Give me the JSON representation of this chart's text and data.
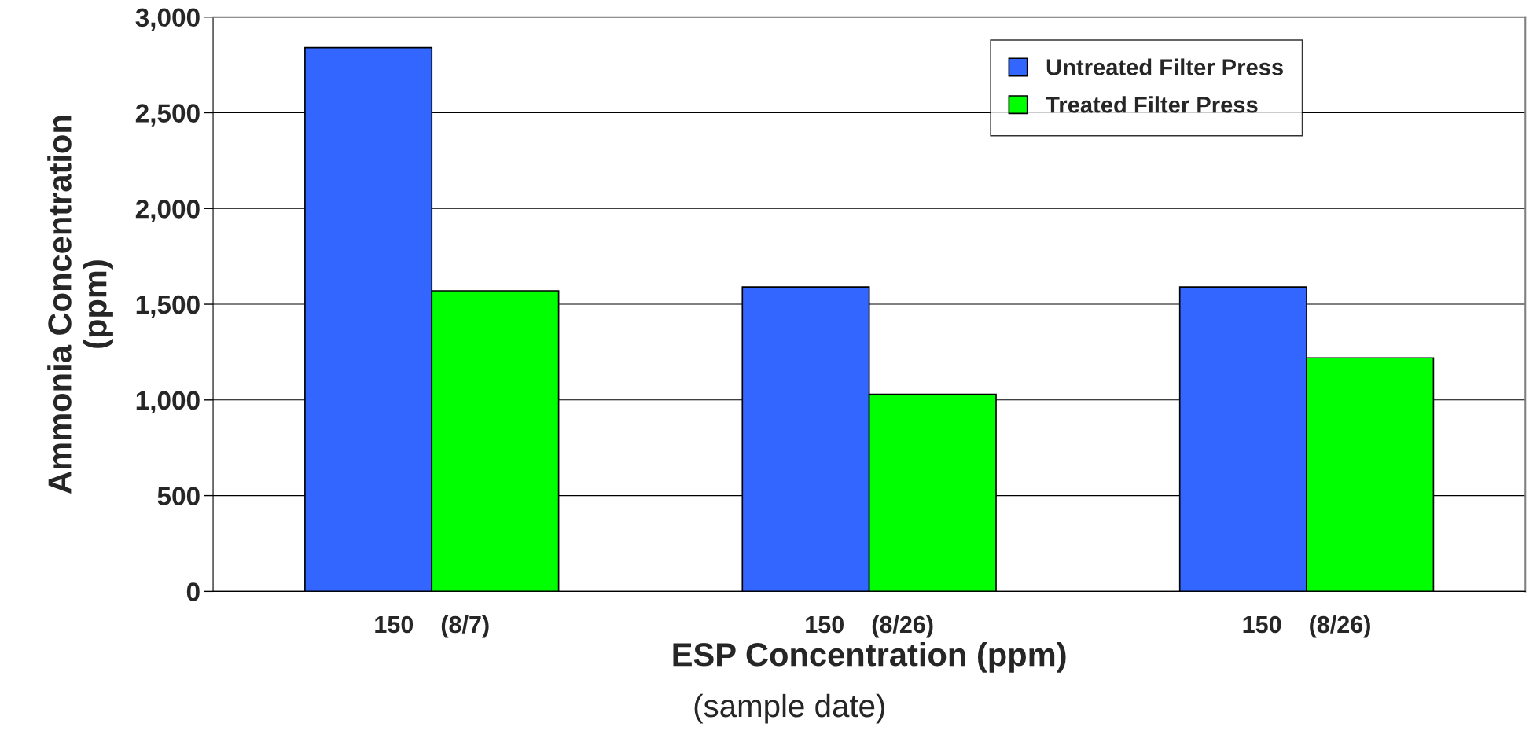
{
  "chart_data": {
    "type": "bar",
    "categories": [
      "150    (8/7)",
      "150    (8/26)",
      "150    (8/26)"
    ],
    "series": [
      {
        "name": "Untreated Filter Press",
        "color": "#3366ff",
        "values": [
          2840,
          1590,
          1590
        ]
      },
      {
        "name": "Treated Filter Press",
        "color": "#00ff00",
        "values": [
          1570,
          1030,
          1220
        ]
      }
    ],
    "xlabel": "ESP Concentration (ppm)",
    "ylabel": "Ammonia Concentration\n(ppm)",
    "annotations": [
      "(sample date)"
    ],
    "ylim": [
      0,
      3000
    ],
    "yticks": [
      0,
      500,
      {
        "value": 1000,
        "label": "1,000"
      },
      {
        "value": 1500,
        "label": "1,500"
      },
      {
        "value": 2000,
        "label": "2,000"
      },
      {
        "value": 2500,
        "label": "2,500"
      },
      {
        "value": 3000,
        "label": "3,000"
      }
    ],
    "grid": "y",
    "legend": "top right"
  }
}
